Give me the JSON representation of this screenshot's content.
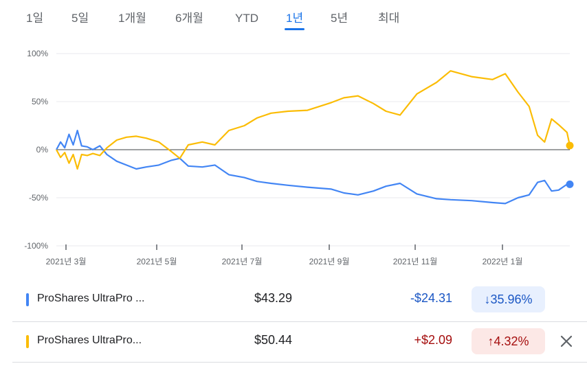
{
  "tabs": [
    {
      "label": "1일",
      "active": false
    },
    {
      "label": "5일",
      "active": false
    },
    {
      "label": "1개월",
      "active": false
    },
    {
      "label": "6개월",
      "active": false
    },
    {
      "label": "YTD",
      "active": false
    },
    {
      "label": "1년",
      "active": true
    },
    {
      "label": "5년",
      "active": false
    },
    {
      "label": "최대",
      "active": false
    }
  ],
  "chart_data": {
    "type": "line",
    "y_ticks": [
      "100%",
      "50%",
      "0%",
      "-50%",
      "-100%"
    ],
    "x_ticks": [
      "2021년 3월",
      "2021년 5월",
      "2021년 7월",
      "2021년 9월",
      "2021년 11월",
      "2022년 1월"
    ],
    "ylim": [
      -100,
      100
    ],
    "grid": true,
    "series": [
      {
        "name": "ProShares UltraPro ...",
        "color": "#4285f4",
        "points": [
          [
            "2021-02-17",
            0
          ],
          [
            "2021-02-20",
            8
          ],
          [
            "2021-02-23",
            2
          ],
          [
            "2021-02-26",
            16
          ],
          [
            "2021-03-01",
            5
          ],
          [
            "2021-03-04",
            20
          ],
          [
            "2021-03-07",
            4
          ],
          [
            "2021-03-11",
            3
          ],
          [
            "2021-03-15",
            0
          ],
          [
            "2021-03-20",
            4
          ],
          [
            "2021-03-25",
            -5
          ],
          [
            "2021-04-01",
            -12
          ],
          [
            "2021-04-08",
            -16
          ],
          [
            "2021-04-15",
            -20
          ],
          [
            "2021-04-22",
            -18
          ],
          [
            "2021-05-01",
            -16
          ],
          [
            "2021-05-10",
            -11
          ],
          [
            "2021-05-16",
            -9
          ],
          [
            "2021-05-22",
            -17
          ],
          [
            "2021-06-01",
            -18
          ],
          [
            "2021-06-10",
            -16
          ],
          [
            "2021-06-20",
            -26
          ],
          [
            "2021-07-01",
            -29
          ],
          [
            "2021-07-10",
            -33
          ],
          [
            "2021-07-20",
            -35
          ],
          [
            "2021-08-01",
            -37
          ],
          [
            "2021-08-15",
            -39
          ],
          [
            "2021-09-01",
            -41
          ],
          [
            "2021-09-10",
            -45
          ],
          [
            "2021-09-20",
            -47
          ],
          [
            "2021-10-01",
            -43
          ],
          [
            "2021-10-10",
            -38
          ],
          [
            "2021-10-20",
            -35
          ],
          [
            "2021-11-01",
            -46
          ],
          [
            "2021-11-15",
            -51
          ],
          [
            "2021-11-25",
            -52
          ],
          [
            "2021-12-10",
            -53
          ],
          [
            "2021-12-25",
            -55
          ],
          [
            "2022-01-03",
            -56
          ],
          [
            "2022-01-12",
            -50
          ],
          [
            "2022-01-20",
            -47
          ],
          [
            "2022-01-26",
            -34
          ],
          [
            "2022-01-31",
            -32
          ],
          [
            "2022-02-05",
            -43
          ],
          [
            "2022-02-10",
            -42
          ],
          [
            "2022-02-16",
            -36
          ],
          [
            "2022-02-18",
            -35.96
          ]
        ]
      },
      {
        "name": "ProShares UltraPro...",
        "color": "#fbbc04",
        "points": [
          [
            "2021-02-17",
            0
          ],
          [
            "2021-02-20",
            -8
          ],
          [
            "2021-02-23",
            -3
          ],
          [
            "2021-02-26",
            -14
          ],
          [
            "2021-03-01",
            -5
          ],
          [
            "2021-03-04",
            -20
          ],
          [
            "2021-03-07",
            -5
          ],
          [
            "2021-03-11",
            -6
          ],
          [
            "2021-03-15",
            -4
          ],
          [
            "2021-03-20",
            -6
          ],
          [
            "2021-03-25",
            2
          ],
          [
            "2021-04-01",
            10
          ],
          [
            "2021-04-08",
            13
          ],
          [
            "2021-04-15",
            14
          ],
          [
            "2021-04-22",
            12
          ],
          [
            "2021-05-01",
            8
          ],
          [
            "2021-05-10",
            -2
          ],
          [
            "2021-05-16",
            -9
          ],
          [
            "2021-05-22",
            5
          ],
          [
            "2021-06-01",
            8
          ],
          [
            "2021-06-10",
            5
          ],
          [
            "2021-06-20",
            20
          ],
          [
            "2021-07-01",
            25
          ],
          [
            "2021-07-10",
            33
          ],
          [
            "2021-07-20",
            38
          ],
          [
            "2021-08-01",
            40
          ],
          [
            "2021-08-15",
            41
          ],
          [
            "2021-09-01",
            49
          ],
          [
            "2021-09-10",
            54
          ],
          [
            "2021-09-20",
            56
          ],
          [
            "2021-10-01",
            48
          ],
          [
            "2021-10-10",
            40
          ],
          [
            "2021-10-20",
            36
          ],
          [
            "2021-11-01",
            58
          ],
          [
            "2021-11-15",
            70
          ],
          [
            "2021-11-25",
            82
          ],
          [
            "2021-12-10",
            76
          ],
          [
            "2021-12-25",
            73
          ],
          [
            "2022-01-03",
            79
          ],
          [
            "2022-01-12",
            60
          ],
          [
            "2022-01-20",
            45
          ],
          [
            "2022-01-26",
            15
          ],
          [
            "2022-01-31",
            8
          ],
          [
            "2022-02-05",
            32
          ],
          [
            "2022-02-10",
            26
          ],
          [
            "2022-02-16",
            18
          ],
          [
            "2022-02-18",
            4.32
          ]
        ]
      }
    ]
  },
  "rows": [
    {
      "name": "ProShares UltraPro ...",
      "color": "#4285f4",
      "price": "$43.29",
      "change": "-$24.31",
      "percent": "35.96%",
      "direction": "down",
      "arrow": "↓"
    },
    {
      "name": "ProShares UltraPro...",
      "color": "#fbbc04",
      "price": "$50.44",
      "change": "+$2.09",
      "percent": "4.32%",
      "direction": "up",
      "arrow": "↑"
    }
  ],
  "icons": {
    "remove": "close-icon",
    "down": "arrow-down-icon",
    "up": "arrow-up-icon"
  }
}
